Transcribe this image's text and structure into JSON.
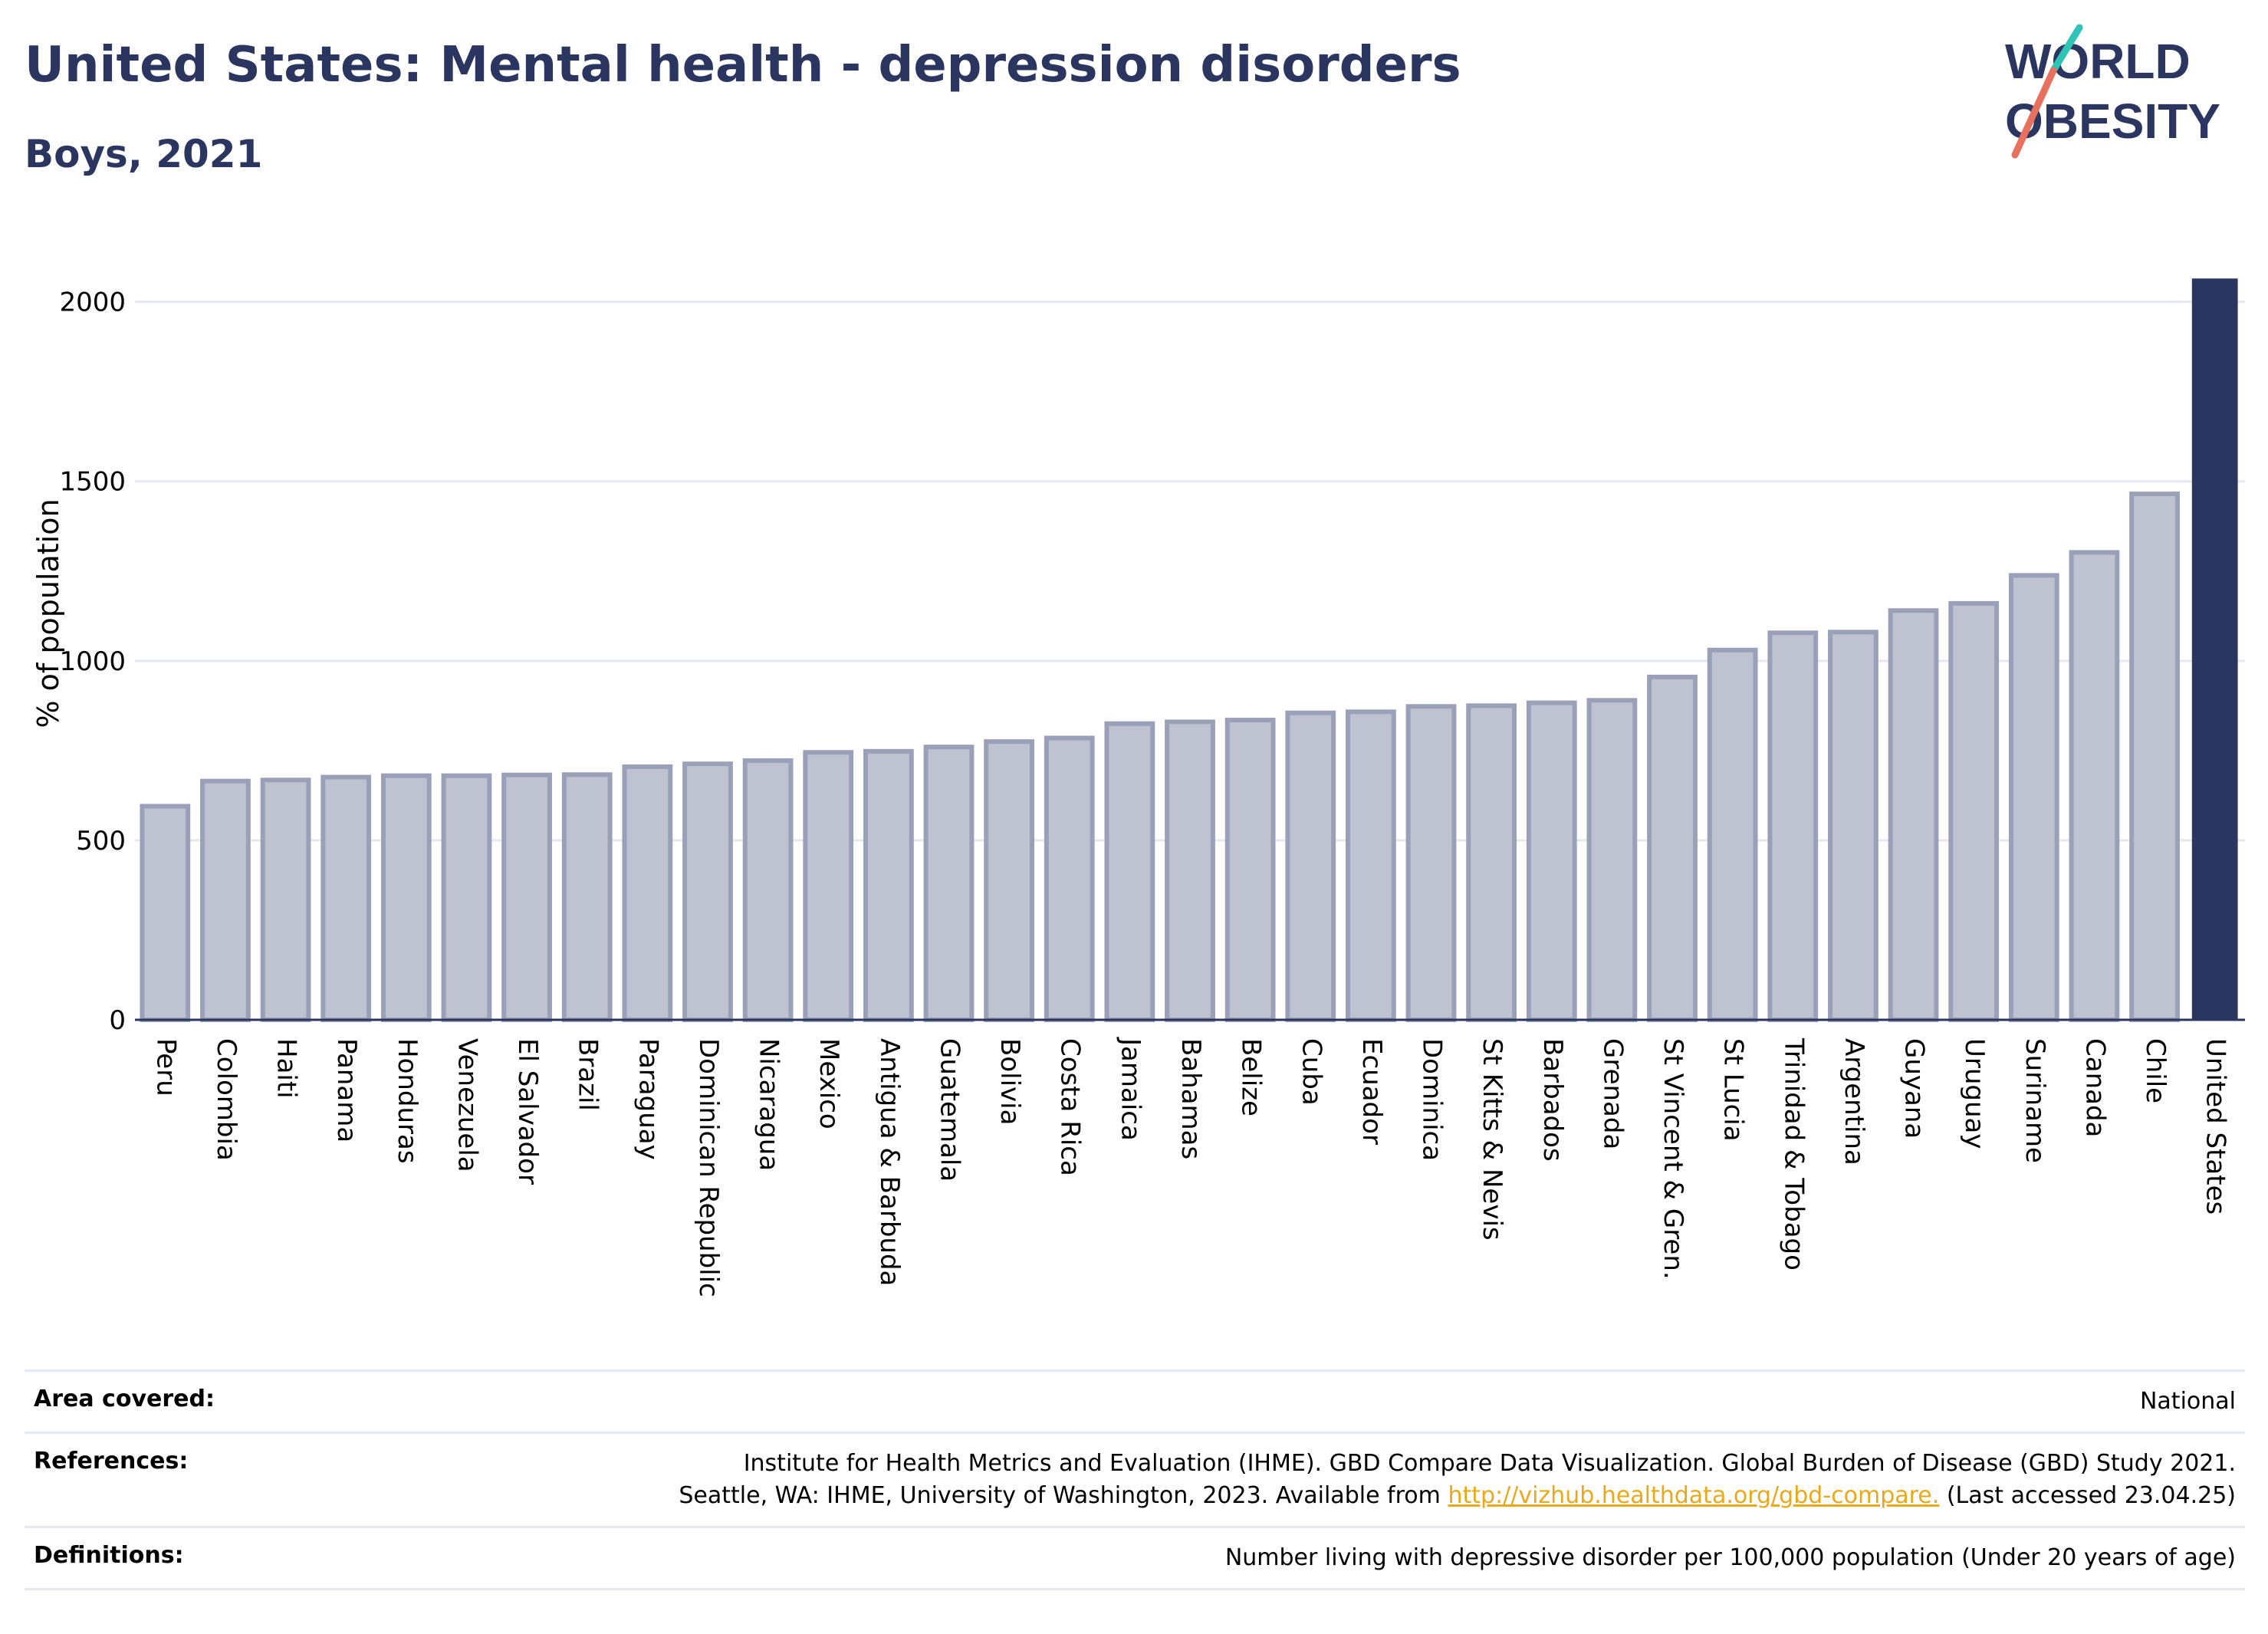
{
  "header": {
    "title": "United States: Mental health - depression disorders",
    "subtitle": "Boys, 2021"
  },
  "logo": {
    "line1": "WORLD",
    "line2": "OBESITY"
  },
  "chart_data": {
    "type": "bar",
    "title": "United States: Mental health - depression disorders",
    "subtitle": "Boys, 2021",
    "ylabel": "% of population",
    "xlabel": "",
    "ylim": [
      0,
      2200
    ],
    "yticks": [
      0,
      500,
      1000,
      1500,
      2000
    ],
    "grid": true,
    "categories": [
      "Peru",
      "Colombia",
      "Haiti",
      "Panama",
      "Honduras",
      "Venezuela",
      "El Salvador",
      "Brazil",
      "Paraguay",
      "Dominican Republic",
      "Nicaragua",
      "Mexico",
      "Antigua & Barbuda",
      "Guatemala",
      "Bolivia",
      "Costa Rica",
      "Jamaica",
      "Bahamas",
      "Belize",
      "Cuba",
      "Ecuador",
      "Dominica",
      "St Kitts & Nevis",
      "Barbados",
      "Grenada",
      "St Vincent & Gren.",
      "St Lucia",
      "Trinidad & Tobago",
      "Argentina",
      "Guyana",
      "Uruguay",
      "Suriname",
      "Canada",
      "Chile",
      "United States"
    ],
    "values": [
      595,
      665,
      668,
      676,
      680,
      680,
      682,
      683,
      705,
      713,
      722,
      745,
      748,
      760,
      775,
      785,
      825,
      830,
      835,
      855,
      858,
      873,
      875,
      883,
      890,
      955,
      1030,
      1078,
      1080,
      1140,
      1160,
      1238,
      1302,
      1465,
      2065
    ],
    "highlight": "United States",
    "colors": {
      "bar": "#bfc3d1",
      "bar_stroke": "#9aa0b8",
      "highlight": "#2b3660",
      "grid": "#e6e8ef"
    }
  },
  "info": {
    "area_label": "Area covered:",
    "area_value": "National",
    "references_label": "References:",
    "references_line1": "Institute for Health Metrics and Evaluation (IHME). GBD Compare Data Visualization. Global Burden of Disease (GBD) Study 2021.",
    "references_line2_pre": "Seattle, WA: IHME, University of Washington, 2023. Available from",
    "references_link": "http://vizhub.healthdata.org/gbd-compare.",
    "references_line2_post": "(Last accessed 23.04.25)",
    "definitions_label": "Definitions:",
    "definitions_value": "Number living with depressive disorder per 100,000 population (Under 20 years of age)"
  }
}
